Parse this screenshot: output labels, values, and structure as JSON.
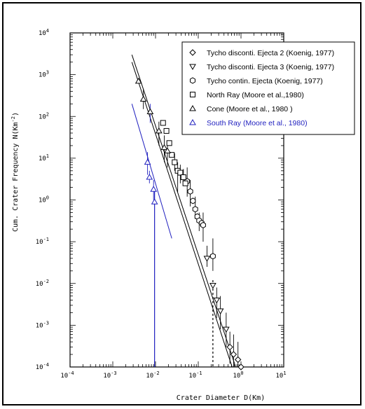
{
  "chart_data": {
    "type": "scatter",
    "x_scale": "log",
    "y_scale": "log",
    "xlim": [
      0.0001,
      10
    ],
    "ylim": [
      0.0001,
      10000
    ],
    "xlabel": "Crater Diameter D(Km)",
    "ylabel": "Cum. Crater Frequency",
    "ylabel_units": "N(Km",
    "ylabel_exp": "-2",
    "ylabel_close": ")",
    "x_ticks": [
      {
        "base": "10",
        "exp": "-4",
        "value": 0.0001
      },
      {
        "base": "10",
        "exp": "-3",
        "value": 0.001
      },
      {
        "base": "10",
        "exp": "-2",
        "value": 0.01
      },
      {
        "base": "10",
        "exp": "-1",
        "value": 0.1
      },
      {
        "base": "10",
        "exp": "0",
        "value": 1
      },
      {
        "base": "10",
        "exp": "1",
        "value": 10
      }
    ],
    "y_ticks": [
      {
        "base": "10",
        "exp": "-4",
        "value": 0.0001
      },
      {
        "base": "10",
        "exp": "-3",
        "value": 0.001
      },
      {
        "base": "10",
        "exp": "-2",
        "value": 0.01
      },
      {
        "base": "10",
        "exp": "-1",
        "value": 0.1
      },
      {
        "base": "10",
        "exp": "0",
        "value": 1
      },
      {
        "base": "10",
        "exp": "1",
        "value": 10
      },
      {
        "base": "10",
        "exp": "2",
        "value": 100
      },
      {
        "base": "10",
        "exp": "3",
        "value": 1000
      },
      {
        "base": "10",
        "exp": "4",
        "value": 10000
      }
    ],
    "legend_position": "top-right",
    "series": [
      {
        "name": "Tycho disconti. Ejecta 2 (Koenig, 1977)",
        "marker": "diamond",
        "color": "#000000",
        "points": [
          [
            0.55,
            0.0003
          ],
          [
            0.67,
            0.0002
          ],
          [
            0.85,
            0.00015
          ],
          [
            1.0,
            0.0001
          ]
        ]
      },
      {
        "name": "Tycho disconti. Ejecta 3 (Koenig, 1977)",
        "marker": "triangle-down",
        "color": "#000000",
        "points": [
          [
            0.16,
            0.04
          ],
          [
            0.22,
            0.009
          ],
          [
            0.27,
            0.004
          ],
          [
            0.33,
            0.0022
          ],
          [
            0.45,
            0.0008
          ]
        ]
      },
      {
        "name": "Tycho contin. Ejecta (Koenig, 1977)",
        "marker": "hexagon",
        "color": "#000000",
        "points": [
          [
            0.055,
            2.8
          ],
          [
            0.065,
            1.6
          ],
          [
            0.075,
            0.95
          ],
          [
            0.085,
            0.6
          ],
          [
            0.095,
            0.4
          ],
          [
            0.105,
            0.32
          ],
          [
            0.12,
            0.28
          ],
          [
            0.13,
            0.25
          ],
          [
            0.22,
            0.045
          ]
        ]
      },
      {
        "name": "North Ray (Moore et al.,1980)",
        "marker": "square",
        "color": "#000000",
        "points": [
          [
            0.015,
            70
          ],
          [
            0.018,
            45
          ],
          [
            0.021,
            23
          ],
          [
            0.024,
            12
          ],
          [
            0.028,
            8
          ],
          [
            0.033,
            5
          ],
          [
            0.038,
            4.5
          ],
          [
            0.045,
            3.5
          ],
          [
            0.05,
            2.5
          ]
        ]
      },
      {
        "name": "Cone (Moore et al., 1980 )",
        "marker": "triangle-up",
        "color": "#000000",
        "points": [
          [
            0.004,
            700
          ],
          [
            0.0052,
            260
          ],
          [
            0.0075,
            130
          ],
          [
            0.012,
            45
          ],
          [
            0.016,
            18
          ],
          [
            0.019,
            15
          ]
        ]
      },
      {
        "name": "South Ray (Moore et al., 1980)",
        "marker": "triangle-up",
        "color": "#1f1fbf",
        "points": [
          [
            0.0065,
            8
          ],
          [
            0.0072,
            3.5
          ],
          [
            0.009,
            1.8
          ],
          [
            0.0095,
            0.9
          ]
        ]
      }
    ],
    "error_bars": [
      {
        "x": 0.0052,
        "lo": 150,
        "hi": 450
      },
      {
        "x": 0.0075,
        "lo": 70,
        "hi": 200
      },
      {
        "x": 0.012,
        "lo": 20,
        "hi": 75
      },
      {
        "x": 0.016,
        "lo": 8,
        "hi": 35
      },
      {
        "x": 0.019,
        "lo": 6,
        "hi": 25
      },
      {
        "x": 0.028,
        "lo": 5,
        "hi": 13
      },
      {
        "x": 0.033,
        "lo": 1.5,
        "hi": 8
      },
      {
        "x": 0.038,
        "lo": 2.5,
        "hi": 7
      },
      {
        "x": 0.045,
        "lo": 2.2,
        "hi": 5.5
      },
      {
        "x": 0.055,
        "lo": 1.2,
        "hi": 6
      },
      {
        "x": 0.065,
        "lo": 0.7,
        "hi": 3
      },
      {
        "x": 0.085,
        "lo": 0.35,
        "hi": 1.2
      },
      {
        "x": 0.105,
        "lo": 0.18,
        "hi": 0.5
      },
      {
        "x": 0.13,
        "lo": 0.1,
        "hi": 0.5
      },
      {
        "x": 0.16,
        "lo": 0.025,
        "hi": 0.08
      },
      {
        "x": 0.22,
        "lo": 0.02,
        "hi": 0.12
      },
      {
        "x": 0.27,
        "lo": 0.0015,
        "hi": 0.008
      },
      {
        "x": 0.33,
        "lo": 0.0008,
        "hi": 0.005
      },
      {
        "x": 0.45,
        "lo": 0.0003,
        "hi": 0.002
      },
      {
        "x": 0.55,
        "lo": 0.00012,
        "hi": 0.0007
      },
      {
        "x": 0.67,
        "lo": 0.0001,
        "hi": 0.0006
      },
      {
        "x": 0.85,
        "lo": 0.0001,
        "hi": 0.0004
      },
      {
        "x": 0.0065,
        "lo": 4,
        "hi": 14
      },
      {
        "x": 0.0072,
        "lo": 2.5,
        "hi": 5
      },
      {
        "x": 0.009,
        "lo": 1.0,
        "hi": 3
      }
    ],
    "fit_lines": [
      {
        "color": "#000000",
        "from": [
          0.0028,
          3000
        ],
        "to": [
          0.75,
          0.0001
        ]
      },
      {
        "color": "#000000",
        "from": [
          0.0028,
          2000
        ],
        "to": [
          0.62,
          0.0001
        ]
      },
      {
        "color": "#1f1fbf",
        "from": [
          0.0028,
          200
        ],
        "to": [
          0.024,
          0.12
        ]
      }
    ],
    "vertical_lines": [
      {
        "color": "#1f1fbf",
        "x": 0.0095,
        "from": 1.8,
        "to": 0.0001,
        "style": "solid"
      },
      {
        "color": "#000000",
        "x": 0.22,
        "from": 0.012,
        "to": 0.0001,
        "style": "dashed"
      }
    ],
    "grid": false
  }
}
